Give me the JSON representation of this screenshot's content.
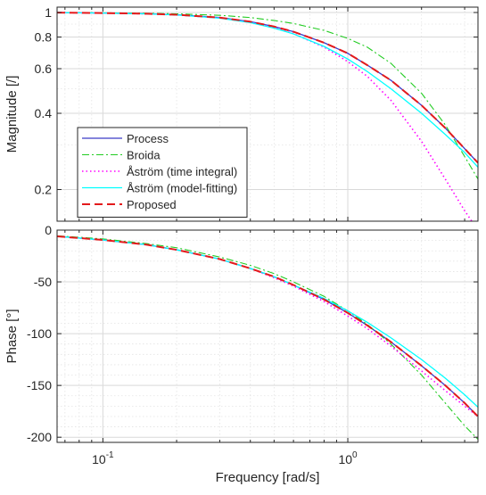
{
  "chart_data": [
    {
      "type": "line",
      "panel": "magnitude",
      "title": "",
      "xlabel": "",
      "ylabel": "Magnitude [/]",
      "xscale": "log",
      "yscale": "log",
      "xlim": [
        0.065,
        3.4
      ],
      "ylim": [
        0.15,
        1.05
      ],
      "grid": true,
      "legend_position": "bottom-left",
      "xticks": [
        {
          "value": 0.1,
          "base": "10",
          "exp": "-1"
        },
        {
          "value": 1,
          "base": "10",
          "exp": "0"
        }
      ],
      "yticks": [
        {
          "value": 0.2,
          "label": "0.2"
        },
        {
          "value": 0.4,
          "label": "0.4"
        },
        {
          "value": 0.6,
          "label": "0.6"
        },
        {
          "value": 0.8,
          "label": "0.8"
        },
        {
          "value": 1,
          "label": "1"
        }
      ],
      "series": [
        {
          "name": "Process",
          "color": "#3b3bc8",
          "style": "solid",
          "x": [
            0.065,
            0.1,
            0.15,
            0.2,
            0.3,
            0.4,
            0.5,
            0.6,
            0.8,
            1.0,
            1.2,
            1.5,
            2.0,
            2.5,
            3.0,
            3.4
          ],
          "y": [
            0.999,
            0.995,
            0.989,
            0.98,
            0.955,
            0.92,
            0.88,
            0.84,
            0.76,
            0.69,
            0.62,
            0.54,
            0.43,
            0.35,
            0.29,
            0.255
          ]
        },
        {
          "name": "Broida",
          "color": "#22cc22",
          "style": "dashdot",
          "x": [
            0.065,
            0.1,
            0.15,
            0.2,
            0.3,
            0.4,
            0.5,
            0.6,
            0.8,
            1.0,
            1.2,
            1.5,
            2.0,
            2.5,
            3.0,
            3.4
          ],
          "y": [
            0.999,
            0.997,
            0.993,
            0.988,
            0.975,
            0.955,
            0.93,
            0.905,
            0.85,
            0.79,
            0.73,
            0.63,
            0.48,
            0.36,
            0.27,
            0.22
          ]
        },
        {
          "name": "Åström (time integral)",
          "color": "#ff00ff",
          "style": "dotted",
          "x": [
            0.065,
            0.1,
            0.15,
            0.2,
            0.3,
            0.4,
            0.5,
            0.6,
            0.8,
            1.0,
            1.2,
            1.5,
            2.0,
            2.5,
            3.0,
            3.4
          ],
          "y": [
            0.999,
            0.995,
            0.988,
            0.978,
            0.952,
            0.915,
            0.872,
            0.825,
            0.73,
            0.64,
            0.56,
            0.45,
            0.31,
            0.22,
            0.165,
            0.138
          ]
        },
        {
          "name": "Åström (model-fitting)",
          "color": "#00ffff",
          "style": "solid",
          "x": [
            0.065,
            0.1,
            0.15,
            0.2,
            0.3,
            0.4,
            0.5,
            0.6,
            0.8,
            1.0,
            1.2,
            1.5,
            2.0,
            2.5,
            3.0,
            3.4
          ],
          "y": [
            0.999,
            0.995,
            0.988,
            0.978,
            0.95,
            0.912,
            0.868,
            0.823,
            0.735,
            0.655,
            0.585,
            0.5,
            0.4,
            0.33,
            0.28,
            0.245
          ]
        },
        {
          "name": "Proposed",
          "color": "#e31a1c",
          "style": "dashed",
          "x": [
            0.065,
            0.1,
            0.15,
            0.2,
            0.3,
            0.4,
            0.5,
            0.6,
            0.8,
            1.0,
            1.2,
            1.5,
            2.0,
            2.5,
            3.0,
            3.4
          ],
          "y": [
            0.999,
            0.995,
            0.989,
            0.98,
            0.955,
            0.92,
            0.88,
            0.84,
            0.76,
            0.69,
            0.62,
            0.54,
            0.43,
            0.35,
            0.29,
            0.255
          ]
        }
      ]
    },
    {
      "type": "line",
      "panel": "phase",
      "title": "",
      "xlabel": "Frequency [rad/s]",
      "ylabel": "Phase [°]",
      "xscale": "log",
      "yscale": "linear",
      "xlim": [
        0.065,
        3.4
      ],
      "ylim": [
        -205,
        0
      ],
      "grid": true,
      "xticks": [
        {
          "value": 0.1,
          "base": "10",
          "exp": "-1"
        },
        {
          "value": 1,
          "base": "10",
          "exp": "0"
        }
      ],
      "yticks": [
        {
          "value": 0,
          "label": "0"
        },
        {
          "value": -50,
          "label": "-50"
        },
        {
          "value": -100,
          "label": "-100"
        },
        {
          "value": -150,
          "label": "-150"
        },
        {
          "value": -200,
          "label": "-200"
        }
      ],
      "series": [
        {
          "name": "Process",
          "color": "#3b3bc8",
          "style": "solid",
          "x": [
            0.065,
            0.1,
            0.15,
            0.2,
            0.3,
            0.4,
            0.5,
            0.6,
            0.8,
            1.0,
            1.2,
            1.5,
            2.0,
            2.5,
            3.0,
            3.4
          ],
          "y": [
            -6,
            -9.5,
            -14,
            -19,
            -28,
            -37,
            -45,
            -53,
            -67,
            -80,
            -92,
            -108,
            -131,
            -150,
            -167,
            -180
          ]
        },
        {
          "name": "Broida",
          "color": "#22cc22",
          "style": "dashdot",
          "x": [
            0.065,
            0.1,
            0.15,
            0.2,
            0.3,
            0.4,
            0.5,
            0.6,
            0.8,
            1.0,
            1.2,
            1.5,
            2.0,
            2.5,
            3.0,
            3.4
          ],
          "y": [
            -5.5,
            -8.5,
            -13,
            -17,
            -26,
            -34,
            -42,
            -50,
            -64,
            -78,
            -91,
            -110,
            -140,
            -167,
            -189,
            -202
          ]
        },
        {
          "name": "Åström (time integral)",
          "color": "#ff00ff",
          "style": "dotted",
          "x": [
            0.065,
            0.1,
            0.15,
            0.2,
            0.3,
            0.4,
            0.5,
            0.6,
            0.8,
            1.0,
            1.2,
            1.5,
            2.0,
            2.5,
            3.0,
            3.4
          ],
          "y": [
            -6,
            -9.5,
            -14,
            -19,
            -28,
            -37,
            -46,
            -54,
            -69,
            -83,
            -95,
            -112,
            -136,
            -155,
            -170,
            -180
          ]
        },
        {
          "name": "Åström (model-fitting)",
          "color": "#00ffff",
          "style": "solid",
          "x": [
            0.065,
            0.1,
            0.15,
            0.2,
            0.3,
            0.4,
            0.5,
            0.6,
            0.8,
            1.0,
            1.2,
            1.5,
            2.0,
            2.5,
            3.0,
            3.4
          ],
          "y": [
            -6,
            -9.5,
            -14,
            -19,
            -28,
            -37,
            -45,
            -53,
            -66,
            -78,
            -89,
            -104,
            -125,
            -143,
            -159,
            -171
          ]
        },
        {
          "name": "Proposed",
          "color": "#e31a1c",
          "style": "dashed",
          "x": [
            0.065,
            0.1,
            0.15,
            0.2,
            0.3,
            0.4,
            0.5,
            0.6,
            0.8,
            1.0,
            1.2,
            1.5,
            2.0,
            2.5,
            3.0,
            3.4
          ],
          "y": [
            -6,
            -9.5,
            -14,
            -19,
            -28,
            -37,
            -45,
            -53,
            -67,
            -80,
            -92,
            -108,
            -131,
            -150,
            -167,
            -180
          ]
        }
      ]
    }
  ]
}
